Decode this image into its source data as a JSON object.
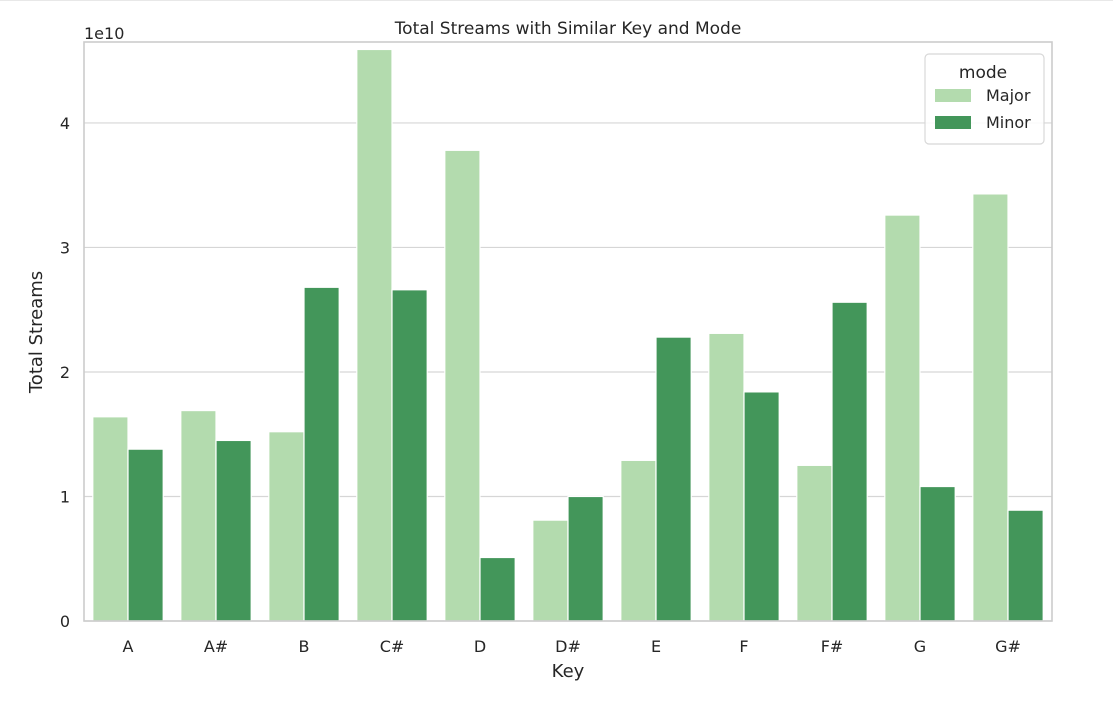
{
  "chart_data": {
    "type": "bar",
    "title": "Total Streams with Similar Key and Mode",
    "xlabel": "Key",
    "ylabel": "Total Streams",
    "y_offset_label": "1e10",
    "categories": [
      "A",
      "A#",
      "B",
      "C#",
      "D",
      "D#",
      "E",
      "F",
      "F#",
      "G",
      "G#"
    ],
    "ylim": [
      0,
      4.65
    ],
    "yticks": [
      0,
      1,
      2,
      3,
      4
    ],
    "grid": true,
    "legend": {
      "title": "mode",
      "position": "top-right"
    },
    "series": [
      {
        "name": "Major",
        "color": "#b3dbae",
        "values": [
          1.64,
          1.69,
          1.52,
          4.59,
          3.78,
          0.81,
          1.29,
          2.31,
          1.25,
          3.26,
          3.43
        ]
      },
      {
        "name": "Minor",
        "color": "#43965a",
        "values": [
          1.38,
          1.45,
          2.68,
          2.66,
          0.51,
          1.0,
          2.28,
          1.84,
          2.56,
          1.08,
          0.89
        ]
      }
    ]
  }
}
